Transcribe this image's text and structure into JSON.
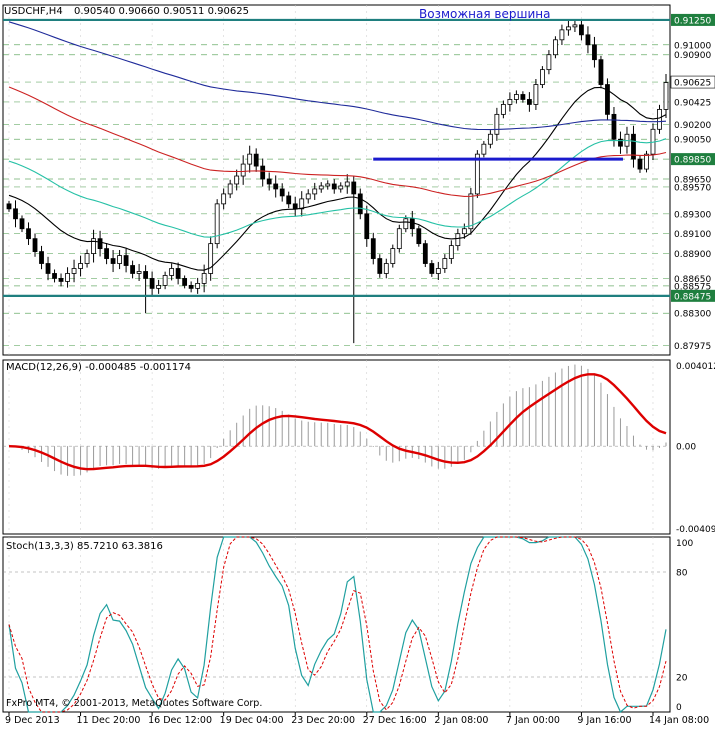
{
  "header": {
    "symbol": "USDCHF,H4",
    "ohlc": "0.90540 0.90660 0.90511 0.90625"
  },
  "footer": {
    "copyright": "FxPro MT4, © 2001-2013, MetaQuotes Software Corp."
  },
  "colors": {
    "background": "#ffffff",
    "frame": "#000000",
    "grid": "#2e8b2e",
    "candles": "#000000",
    "ma_fast": "#000000",
    "ma_medium": "#26c1a6",
    "ma_slow_red": "#cc2222",
    "ma_slow_blue": "#1f2b9a",
    "level_teal": "#1f7f7f",
    "level_blue": "#1a1acd",
    "annotation": "#1a1acd",
    "price_label_bg": "#1f7f3f",
    "macd_hist": "#9a9a9a",
    "macd_signal": "#dd0000",
    "stoch_main": "#20a0a0",
    "stoch_signal": "#dd0000",
    "tag_bg": "#ffffff"
  },
  "chart_data": [
    {
      "type": "candlestick",
      "annotation": "Возможная вершина",
      "ylim": [
        0.8788,
        0.914
      ],
      "y_ticks": [
        "0.91250",
        "0.91000",
        "0.90900",
        "0.90625",
        "0.90425",
        "0.90200",
        "0.90050",
        "0.89850",
        "0.89650",
        "0.89570",
        "0.89300",
        "0.89100",
        "0.88900",
        "0.88650",
        "0.88575",
        "0.88475",
        "0.88300",
        "0.87975"
      ],
      "horizontal_levels": [
        {
          "value": 0.9125,
          "label": "0.91250",
          "style": "teal"
        },
        {
          "value": 0.8985,
          "label": "0.89850",
          "style": "blue",
          "x_from_fraction": 0.66,
          "x_to_fraction": 1.0
        },
        {
          "value": 0.88475,
          "label": "0.88475",
          "style": "teal"
        }
      ],
      "last_price": {
        "value": 0.90625,
        "label": "0.90625"
      },
      "x_labels": [
        "9 Dec 2013",
        "11 Dec 20:00",
        "16 Dec 12:00",
        "19 Dec 04:00",
        "23 Dec 20:00",
        "27 Dec 16:00",
        "2 Jan 08:00",
        "7 Jan 00:00",
        "9 Jan 16:00",
        "14 Jan 08:00"
      ],
      "x_label_bar_index": [
        0,
        11,
        22,
        33,
        44,
        55,
        66,
        77,
        88,
        99
      ],
      "close": [
        0.8935,
        0.8925,
        0.8915,
        0.8905,
        0.8892,
        0.888,
        0.887,
        0.8865,
        0.8862,
        0.887,
        0.8875,
        0.888,
        0.889,
        0.8905,
        0.8895,
        0.8885,
        0.888,
        0.8888,
        0.8878,
        0.887,
        0.8872,
        0.8865,
        0.8855,
        0.8858,
        0.8868,
        0.8875,
        0.8865,
        0.8858,
        0.8855,
        0.886,
        0.887,
        0.89,
        0.894,
        0.895,
        0.896,
        0.8968,
        0.898,
        0.899,
        0.8978,
        0.8965,
        0.896,
        0.8955,
        0.8948,
        0.894,
        0.8935,
        0.8945,
        0.895,
        0.8955,
        0.8958,
        0.896,
        0.8955,
        0.8958,
        0.8962,
        0.895,
        0.893,
        0.8905,
        0.8885,
        0.887,
        0.888,
        0.8895,
        0.8915,
        0.8925,
        0.8915,
        0.89,
        0.888,
        0.887,
        0.8875,
        0.8885,
        0.8898,
        0.891,
        0.8915,
        0.895,
        0.899,
        0.9,
        0.901,
        0.903,
        0.904,
        0.9045,
        0.905,
        0.9045,
        0.904,
        0.906,
        0.9075,
        0.909,
        0.9105,
        0.9115,
        0.9118,
        0.912,
        0.911,
        0.91,
        0.9085,
        0.906,
        0.903,
        0.9005,
        0.8998,
        0.901,
        0.8985,
        0.8975,
        0.899,
        0.9015,
        0.9035,
        0.9062
      ],
      "moving_averages": [
        {
          "key": "ma_fast",
          "color_key": "ma_fast",
          "period": 20
        },
        {
          "key": "ma_medium",
          "color_key": "ma_medium",
          "period": 50
        },
        {
          "key": "ma_slow_red",
          "color_key": "ma_slow_red",
          "period": 100
        },
        {
          "key": "ma_slow_blue",
          "color_key": "ma_slow_blue",
          "period": 200
        }
      ]
    },
    {
      "type": "bar+line",
      "title": "MACD(12,26,9) -0.000485 -0.001174",
      "ylim": [
        -0.004091,
        0.004012
      ],
      "y_ticks": [
        "0.004012",
        "0.00",
        "-0.004091"
      ],
      "zero": 0.0
    },
    {
      "type": "line",
      "title": "Stoch(13,3,3) 85.7210 63.3816",
      "ylim": [
        0,
        100
      ],
      "y_ticks": [
        "100",
        "80",
        "20",
        "0"
      ],
      "levels": [
        80,
        20
      ]
    }
  ]
}
